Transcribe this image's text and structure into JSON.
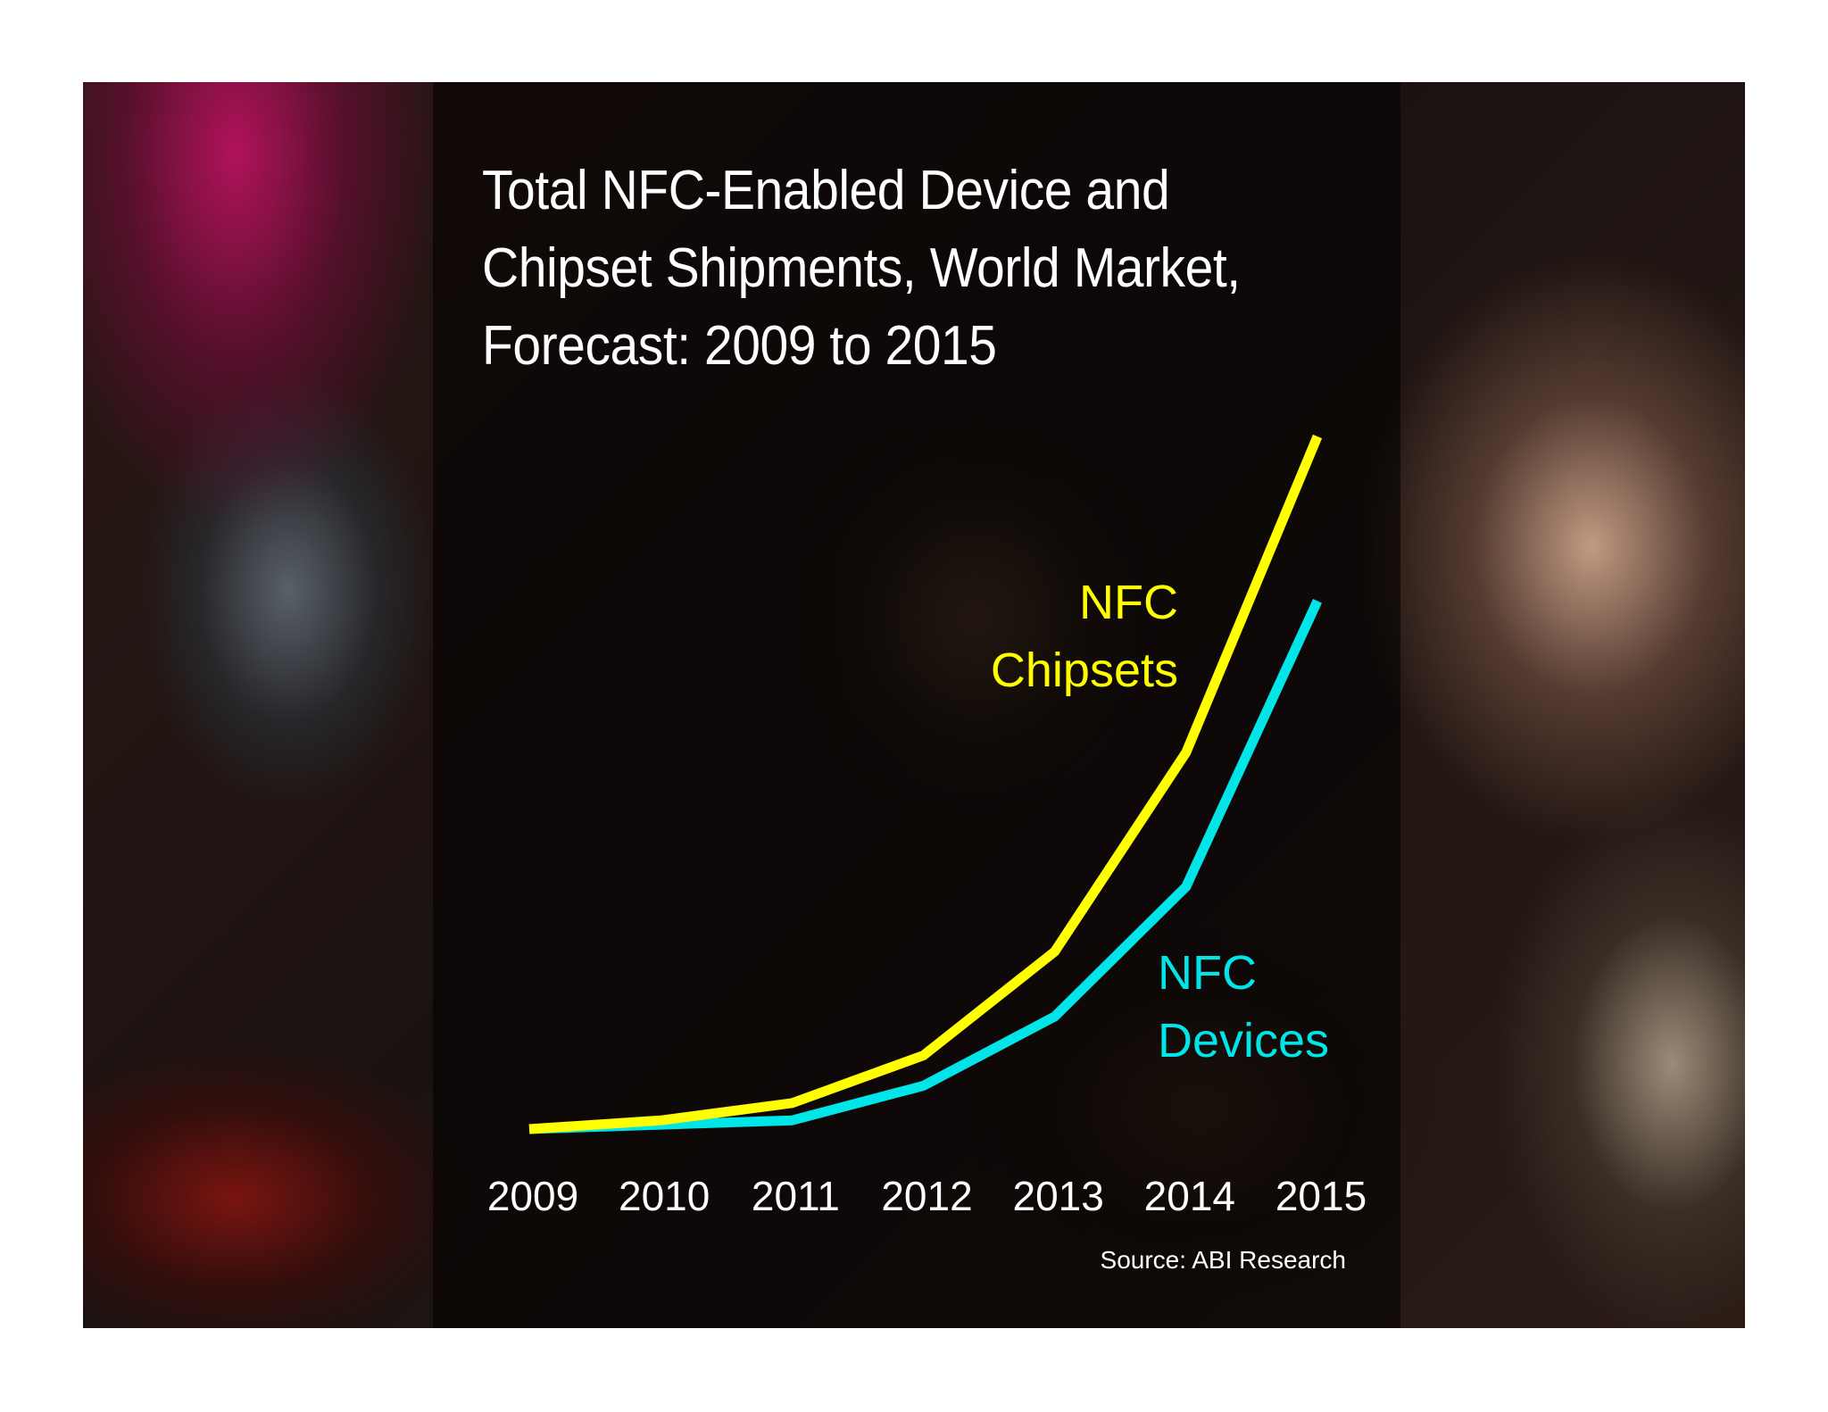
{
  "chart_data": {
    "type": "line",
    "title_lines": [
      "Total NFC-Enabled Device and",
      "Chipset Shipments, World Market,",
      "Forecast: 2009 to 2015"
    ],
    "categories": [
      "2009",
      "2010",
      "2011",
      "2012",
      "2013",
      "2014",
      "2015"
    ],
    "series": [
      {
        "name": "NFC Chipsets",
        "label_lines": [
          "NFC",
          "Chipsets"
        ],
        "color": "#ffff00",
        "values": [
          0,
          2,
          6,
          17,
          41,
          87,
          160
        ]
      },
      {
        "name": "NFC Devices",
        "label_lines": [
          "NFC",
          "Devices"
        ],
        "color": "#00e5e8",
        "values": [
          0,
          1,
          2,
          10,
          26,
          56,
          122
        ]
      }
    ],
    "ylim": [
      0,
      160
    ],
    "xlabel": "",
    "ylabel": "",
    "grid": false,
    "legend": "inline labels beside lines",
    "source": "Source: ABI Research"
  }
}
